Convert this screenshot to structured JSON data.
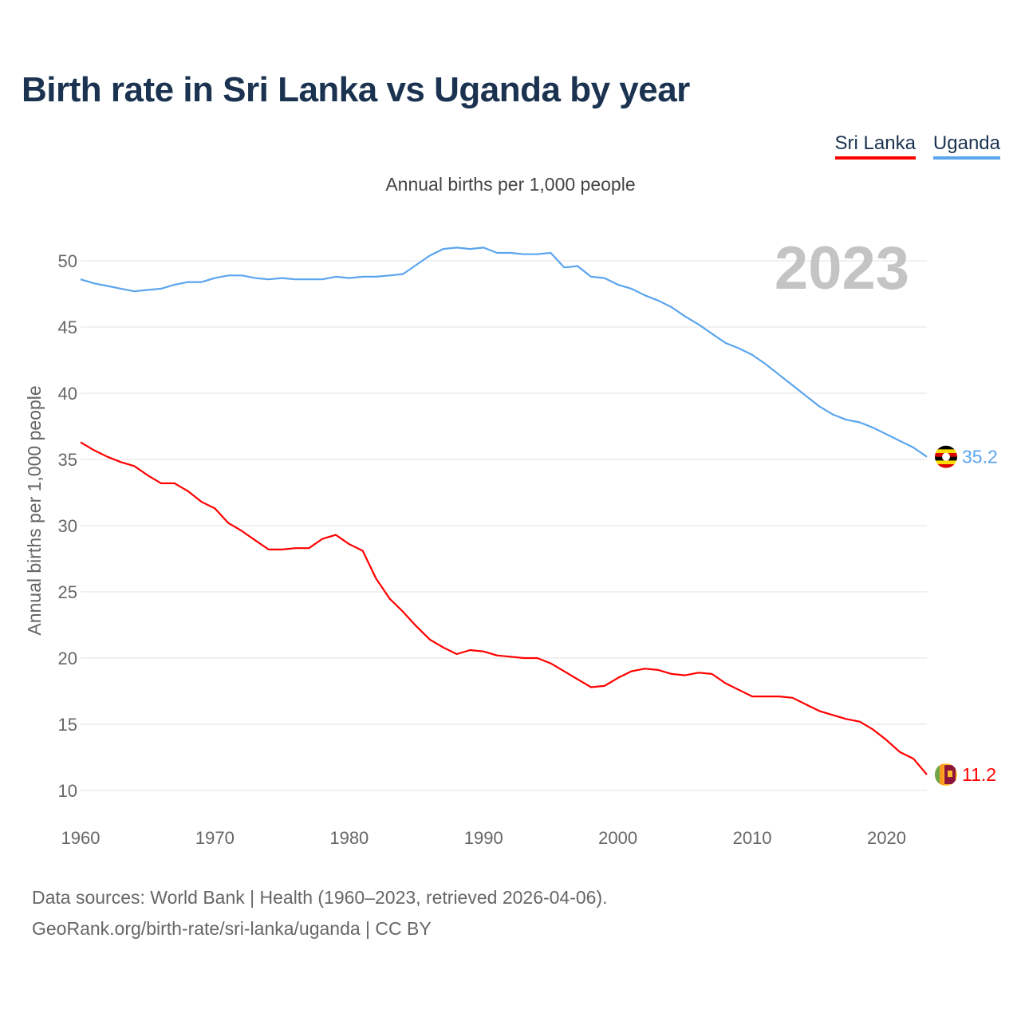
{
  "title": "Birth rate in Sri Lanka vs Uganda by year",
  "subtitle": "Annual births per 1,000 people",
  "footer": {
    "line1": "Data sources: World Bank | Health (1960–2023, retrieved 2026-04-06).",
    "line2": "GeoRank.org/birth-rate/sri-lanka/uganda | CC BY"
  },
  "chart_data": {
    "type": "line",
    "title": "Birth rate in Sri Lanka vs Uganda by year",
    "ylabel": "Annual births per 1,000 people",
    "xlabel": "",
    "year_label": "2023",
    "xlim": [
      1960,
      2023
    ],
    "ylim": [
      10,
      50
    ],
    "yticks": [
      "10",
      "15",
      "20",
      "25",
      "30",
      "35",
      "40",
      "45",
      "50"
    ],
    "xticks": [
      "1960",
      "1970",
      "1980",
      "1990",
      "2000",
      "2010",
      "2020"
    ],
    "grid": true,
    "legend_position": "top-right",
    "x_start": 1960,
    "series": [
      {
        "name": "Sri Lanka",
        "color": "#ff0000",
        "end_label": "11.2",
        "flag": "sri-lanka-flag",
        "values": [
          36.3,
          35.7,
          35.2,
          34.8,
          34.5,
          33.8,
          33.2,
          33.2,
          32.6,
          31.8,
          31.3,
          30.2,
          29.6,
          28.9,
          28.2,
          28.2,
          28.3,
          28.3,
          29.0,
          29.3,
          28.6,
          28.1,
          26.0,
          24.5,
          23.5,
          22.4,
          21.4,
          20.8,
          20.3,
          20.6,
          20.5,
          20.2,
          20.1,
          20.0,
          20.0,
          19.6,
          19.0,
          18.4,
          17.8,
          17.9,
          18.5,
          19.0,
          19.2,
          19.1,
          18.8,
          18.7,
          18.9,
          18.8,
          18.1,
          17.6,
          17.1,
          17.1,
          17.1,
          17.0,
          16.5,
          16.0,
          15.7,
          15.4,
          15.2,
          14.6,
          13.8,
          12.9,
          12.4,
          11.2
        ]
      },
      {
        "name": "Uganda",
        "color": "#5aa5ee",
        "end_label": "35.2",
        "flag": "uganda-flag",
        "values": [
          48.6,
          48.3,
          48.1,
          47.9,
          47.7,
          47.8,
          47.9,
          48.2,
          48.4,
          48.4,
          48.7,
          48.9,
          48.9,
          48.7,
          48.6,
          48.7,
          48.6,
          48.6,
          48.6,
          48.8,
          48.7,
          48.8,
          48.8,
          48.9,
          49.0,
          49.7,
          50.4,
          50.9,
          51.0,
          50.9,
          51.0,
          50.6,
          50.6,
          50.5,
          50.5,
          50.6,
          49.5,
          49.6,
          48.8,
          48.7,
          48.2,
          47.9,
          47.4,
          47.0,
          46.5,
          45.8,
          45.2,
          44.5,
          43.8,
          43.4,
          42.9,
          42.2,
          41.4,
          40.6,
          39.8,
          39.0,
          38.4,
          38.0,
          37.8,
          37.4,
          36.9,
          36.4,
          35.9,
          35.2
        ]
      }
    ]
  }
}
